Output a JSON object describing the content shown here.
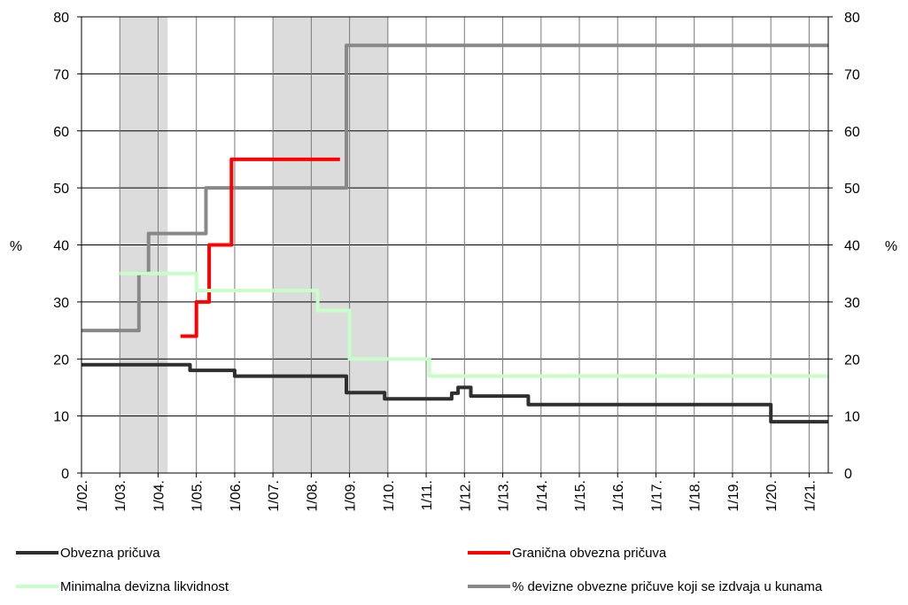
{
  "chart_data": {
    "type": "line",
    "x_unit": "month",
    "xlim": [
      "2002-01",
      "2021-07"
    ],
    "ylim": [
      0,
      80
    ],
    "y_ticks": [
      0,
      10,
      20,
      30,
      40,
      50,
      60,
      70,
      80
    ],
    "ylabel_left": "%",
    "ylabel_right": "%",
    "x_tick_labels": [
      "1/02.",
      "1/03.",
      "1/04.",
      "1/05.",
      "1/06.",
      "1/07.",
      "1/08.",
      "1/09.",
      "1/10.",
      "1/11.",
      "1/12.",
      "1/13.",
      "1/14.",
      "1/15.",
      "1/16.",
      "1/17.",
      "1/18.",
      "1/19.",
      "1/20.",
      "1/21."
    ],
    "grid": "vertical lines at each year, horizontal lines at each 10",
    "shaded_periods": [
      {
        "start": "2003-01",
        "end": "2004-04"
      },
      {
        "start": "2007-01",
        "end": "2010-01"
      }
    ],
    "legend_position": "bottom",
    "series": [
      {
        "name": "Obvezna pričuva",
        "color": "#2f2f2f",
        "points": [
          [
            "2002-01",
            19
          ],
          [
            "2004-11",
            19
          ],
          [
            "2004-11",
            18
          ],
          [
            "2006-01",
            18
          ],
          [
            "2006-01",
            17
          ],
          [
            "2008-12",
            17
          ],
          [
            "2008-12",
            14.1
          ],
          [
            "2009-12",
            14.1
          ],
          [
            "2009-12",
            13
          ],
          [
            "2011-09",
            13
          ],
          [
            "2011-09",
            14
          ],
          [
            "2011-11",
            14
          ],
          [
            "2011-11",
            15
          ],
          [
            "2012-03",
            15
          ],
          [
            "2012-03",
            13.5
          ],
          [
            "2013-09",
            13.5
          ],
          [
            "2013-09",
            12
          ],
          [
            "2020-01",
            12
          ],
          [
            "2020-01",
            9
          ],
          [
            "2021-07",
            9
          ]
        ]
      },
      {
        "name": "Granična obvezna pričuva",
        "color": "#ff0000",
        "points": [
          [
            "2004-08",
            24
          ],
          [
            "2005-01",
            24
          ],
          [
            "2005-01",
            30
          ],
          [
            "2005-05",
            30
          ],
          [
            "2005-05",
            40
          ],
          [
            "2005-12",
            40
          ],
          [
            "2005-12",
            55
          ],
          [
            "2008-10",
            55
          ]
        ]
      },
      {
        "name": "Minimalna devizna likvidnost",
        "color": "#c8ffc8",
        "points": [
          [
            "2003-01",
            35
          ],
          [
            "2005-01",
            35
          ],
          [
            "2005-01",
            32
          ],
          [
            "2008-03",
            32
          ],
          [
            "2008-03",
            28.5
          ],
          [
            "2009-01",
            28.5
          ],
          [
            "2009-01",
            20
          ],
          [
            "2011-02",
            20
          ],
          [
            "2011-02",
            17
          ],
          [
            "2021-07",
            17
          ]
        ]
      },
      {
        "name": "% devizne obvezne pričuve koji se izdvaja u kunama",
        "color": "#888888",
        "points": [
          [
            "2002-01",
            25
          ],
          [
            "2003-07",
            25
          ],
          [
            "2003-07",
            35
          ],
          [
            "2003-10",
            35
          ],
          [
            "2003-10",
            42
          ],
          [
            "2005-04",
            42
          ],
          [
            "2005-04",
            50
          ],
          [
            "2008-12",
            50
          ],
          [
            "2008-12",
            75
          ],
          [
            "2021-07",
            75
          ]
        ]
      }
    ]
  }
}
